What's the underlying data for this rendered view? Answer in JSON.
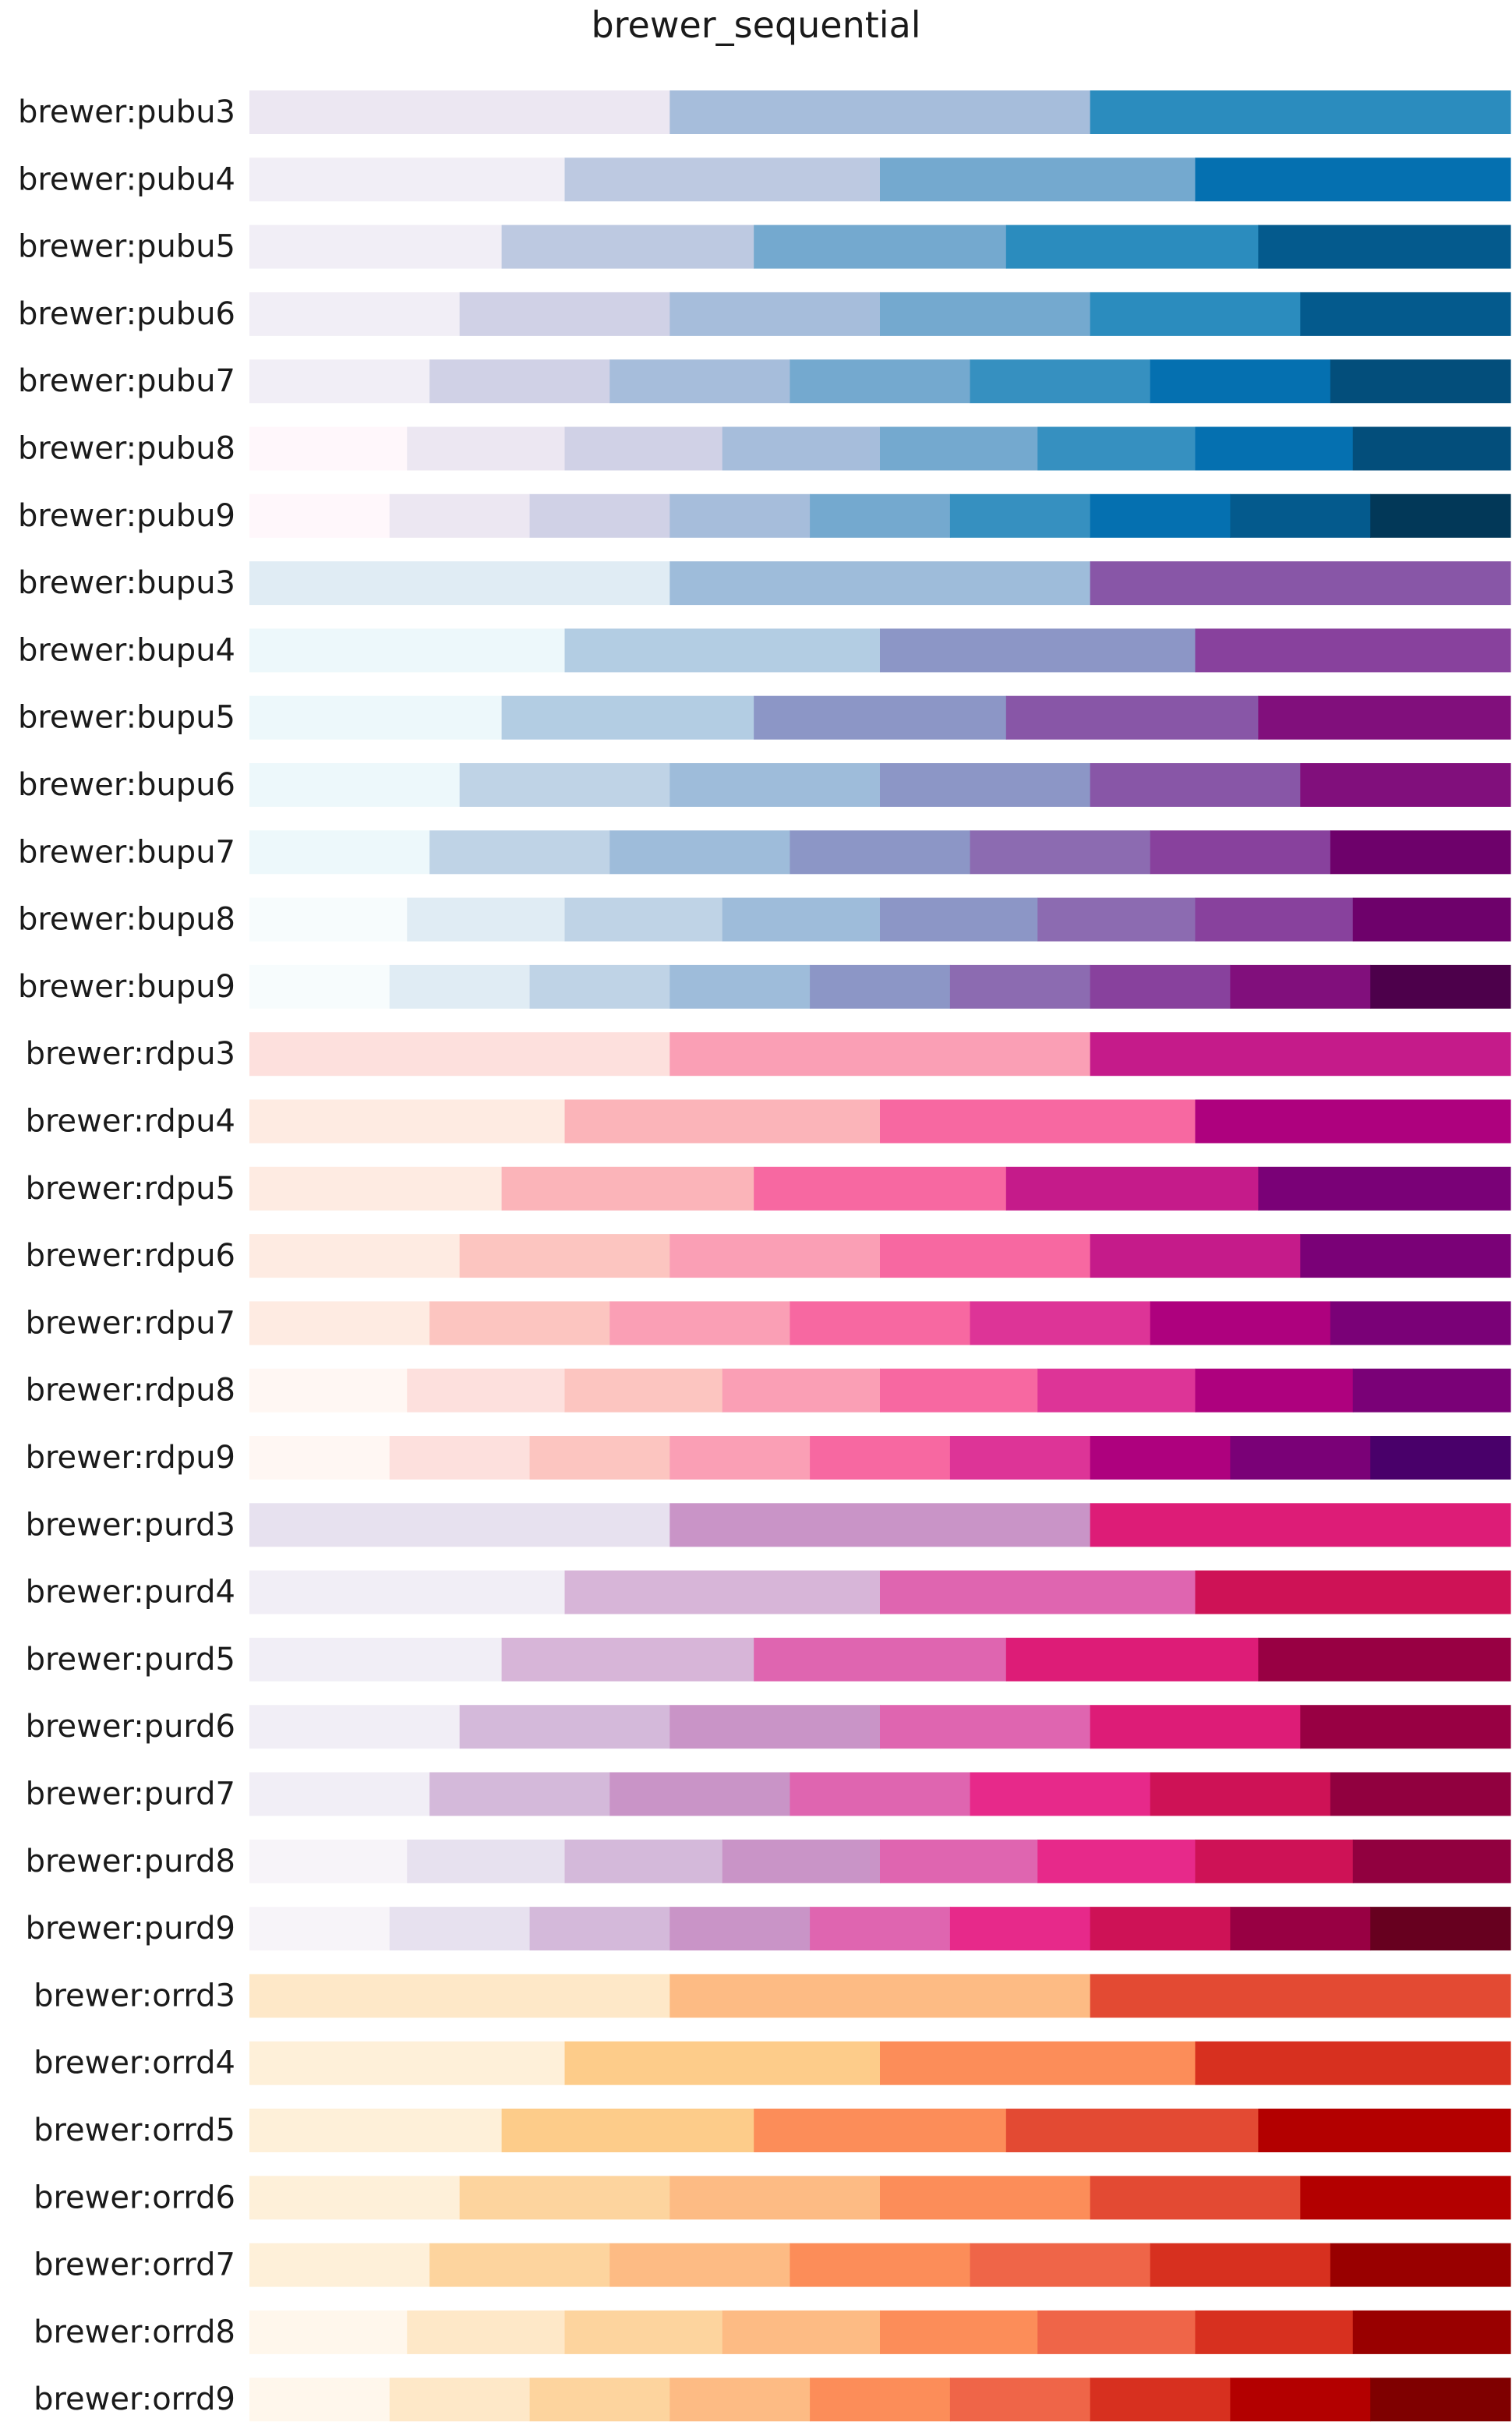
{
  "chart_data": {
    "type": "bar",
    "title": "brewer_sequential",
    "xlabel": "",
    "ylabel": "",
    "grid": false,
    "legend": "none",
    "rows": [
      {
        "label": "brewer:pubu3",
        "colors": [
          "#ece7f2",
          "#a6bddb",
          "#2b8cbe"
        ]
      },
      {
        "label": "brewer:pubu4",
        "colors": [
          "#f1eef6",
          "#bdc9e1",
          "#74a9cf",
          "#0570b0"
        ]
      },
      {
        "label": "brewer:pubu5",
        "colors": [
          "#f1eef6",
          "#bdc9e1",
          "#74a9cf",
          "#2b8cbe",
          "#045a8d"
        ]
      },
      {
        "label": "brewer:pubu6",
        "colors": [
          "#f1eef6",
          "#d0d1e6",
          "#a6bddb",
          "#74a9cf",
          "#2b8cbe",
          "#045a8d"
        ]
      },
      {
        "label": "brewer:pubu7",
        "colors": [
          "#f1eef6",
          "#d0d1e6",
          "#a6bddb",
          "#74a9cf",
          "#3690c0",
          "#0570b0",
          "#034e7b"
        ]
      },
      {
        "label": "brewer:pubu8",
        "colors": [
          "#fff7fb",
          "#ece7f2",
          "#d0d1e6",
          "#a6bddb",
          "#74a9cf",
          "#3690c0",
          "#0570b0",
          "#034e7b"
        ]
      },
      {
        "label": "brewer:pubu9",
        "colors": [
          "#fff7fb",
          "#ece7f2",
          "#d0d1e6",
          "#a6bddb",
          "#74a9cf",
          "#3690c0",
          "#0570b0",
          "#045a8d",
          "#023858"
        ]
      },
      {
        "label": "brewer:bupu3",
        "colors": [
          "#e0ecf4",
          "#9ebcda",
          "#8856a7"
        ]
      },
      {
        "label": "brewer:bupu4",
        "colors": [
          "#edf8fb",
          "#b3cde3",
          "#8c96c6",
          "#88419d"
        ]
      },
      {
        "label": "brewer:bupu5",
        "colors": [
          "#edf8fb",
          "#b3cde3",
          "#8c96c6",
          "#8856a7",
          "#810f7c"
        ]
      },
      {
        "label": "brewer:bupu6",
        "colors": [
          "#edf8fb",
          "#bfd3e6",
          "#9ebcda",
          "#8c96c6",
          "#8856a7",
          "#810f7c"
        ]
      },
      {
        "label": "brewer:bupu7",
        "colors": [
          "#edf8fb",
          "#bfd3e6",
          "#9ebcda",
          "#8c96c6",
          "#8c6bb1",
          "#88419d",
          "#6e016b"
        ]
      },
      {
        "label": "brewer:bupu8",
        "colors": [
          "#f7fcfd",
          "#e0ecf4",
          "#bfd3e6",
          "#9ebcda",
          "#8c96c6",
          "#8c6bb1",
          "#88419d",
          "#6e016b"
        ]
      },
      {
        "label": "brewer:bupu9",
        "colors": [
          "#f7fcfd",
          "#e0ecf4",
          "#bfd3e6",
          "#9ebcda",
          "#8c96c6",
          "#8c6bb1",
          "#88419d",
          "#810f7c",
          "#4d004b"
        ]
      },
      {
        "label": "brewer:rdpu3",
        "colors": [
          "#fde0dd",
          "#fa9fb5",
          "#c51b8a"
        ]
      },
      {
        "label": "brewer:rdpu4",
        "colors": [
          "#feebe2",
          "#fbb4b9",
          "#f768a1",
          "#ae017e"
        ]
      },
      {
        "label": "brewer:rdpu5",
        "colors": [
          "#feebe2",
          "#fbb4b9",
          "#f768a1",
          "#c51b8a",
          "#7a0177"
        ]
      },
      {
        "label": "brewer:rdpu6",
        "colors": [
          "#feebe2",
          "#fcc5c0",
          "#fa9fb5",
          "#f768a1",
          "#c51b8a",
          "#7a0177"
        ]
      },
      {
        "label": "brewer:rdpu7",
        "colors": [
          "#feebe2",
          "#fcc5c0",
          "#fa9fb5",
          "#f768a1",
          "#dd3497",
          "#ae017e",
          "#7a0177"
        ]
      },
      {
        "label": "brewer:rdpu8",
        "colors": [
          "#fff7f3",
          "#fde0dd",
          "#fcc5c0",
          "#fa9fb5",
          "#f768a1",
          "#dd3497",
          "#ae017e",
          "#7a0177"
        ]
      },
      {
        "label": "brewer:rdpu9",
        "colors": [
          "#fff7f3",
          "#fde0dd",
          "#fcc5c0",
          "#fa9fb5",
          "#f768a1",
          "#dd3497",
          "#ae017e",
          "#7a0177",
          "#49006a"
        ]
      },
      {
        "label": "brewer:purd3",
        "colors": [
          "#e7e1ef",
          "#c994c7",
          "#dd1c77"
        ]
      },
      {
        "label": "brewer:purd4",
        "colors": [
          "#f1eef6",
          "#d7b5d8",
          "#df65b0",
          "#ce1256"
        ]
      },
      {
        "label": "brewer:purd5",
        "colors": [
          "#f1eef6",
          "#d7b5d8",
          "#df65b0",
          "#dd1c77",
          "#980043"
        ]
      },
      {
        "label": "brewer:purd6",
        "colors": [
          "#f1eef6",
          "#d4b9da",
          "#c994c7",
          "#df65b0",
          "#dd1c77",
          "#980043"
        ]
      },
      {
        "label": "brewer:purd7",
        "colors": [
          "#f1eef6",
          "#d4b9da",
          "#c994c7",
          "#df65b0",
          "#e7298a",
          "#ce1256",
          "#91003f"
        ]
      },
      {
        "label": "brewer:purd8",
        "colors": [
          "#f7f4f9",
          "#e7e1ef",
          "#d4b9da",
          "#c994c7",
          "#df65b0",
          "#e7298a",
          "#ce1256",
          "#91003f"
        ]
      },
      {
        "label": "brewer:purd9",
        "colors": [
          "#f7f4f9",
          "#e7e1ef",
          "#d4b9da",
          "#c994c7",
          "#df65b0",
          "#e7298a",
          "#ce1256",
          "#980043",
          "#67001f"
        ]
      },
      {
        "label": "brewer:orrd3",
        "colors": [
          "#fee8c8",
          "#fdbb84",
          "#e34a33"
        ]
      },
      {
        "label": "brewer:orrd4",
        "colors": [
          "#fef0d9",
          "#fdcc8a",
          "#fc8d59",
          "#d7301f"
        ]
      },
      {
        "label": "brewer:orrd5",
        "colors": [
          "#fef0d9",
          "#fdcc8a",
          "#fc8d59",
          "#e34a33",
          "#b30000"
        ]
      },
      {
        "label": "brewer:orrd6",
        "colors": [
          "#fef0d9",
          "#fdd49e",
          "#fdbb84",
          "#fc8d59",
          "#e34a33",
          "#b30000"
        ]
      },
      {
        "label": "brewer:orrd7",
        "colors": [
          "#fef0d9",
          "#fdd49e",
          "#fdbb84",
          "#fc8d59",
          "#ef6548",
          "#d7301f",
          "#990000"
        ]
      },
      {
        "label": "brewer:orrd8",
        "colors": [
          "#fff7ec",
          "#fee8c8",
          "#fdd49e",
          "#fdbb84",
          "#fc8d59",
          "#ef6548",
          "#d7301f",
          "#990000"
        ]
      },
      {
        "label": "brewer:orrd9",
        "colors": [
          "#fff7ec",
          "#fee8c8",
          "#fdd49e",
          "#fdbb84",
          "#fc8d59",
          "#ef6548",
          "#d7301f",
          "#b30000",
          "#7f0000"
        ]
      }
    ]
  }
}
